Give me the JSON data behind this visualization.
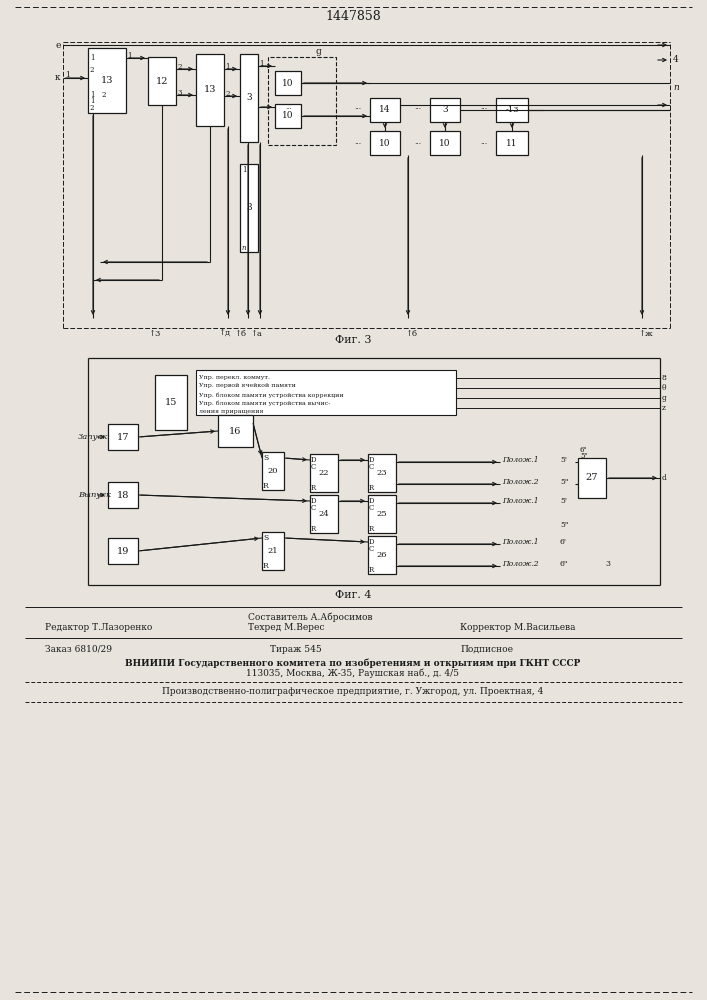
{
  "title": "1447858",
  "bg_color": "#e8e4dd",
  "line_color": "#1a1a1a",
  "box_color": "#ffffff",
  "fig3_caption": "Фиг. 3",
  "fig4_caption": "Фиг. 4",
  "footer": {
    "line1_left": "Редактор Т.Лазоренко",
    "line1_center": "Составитель А.Абросимов",
    "line1_right": "",
    "line2_left": "",
    "line2_center": "Техред М.Верес",
    "line2_right": "Корректор М.Васильева",
    "order": "Заказ 6810/29",
    "tirazh": "Тираж 545",
    "podpisnoe": "Подписное",
    "vniipи": "ВНИИПИ Государственного комитета по изобретениям и открытиям при ГКНТ СССР",
    "address": "113035, Москва, Ж-35, Раушская наб., д. 4/5",
    "production": "Производственно-полиграфическое предприятие, г. Ужгород, ул. Проектная, 4"
  }
}
